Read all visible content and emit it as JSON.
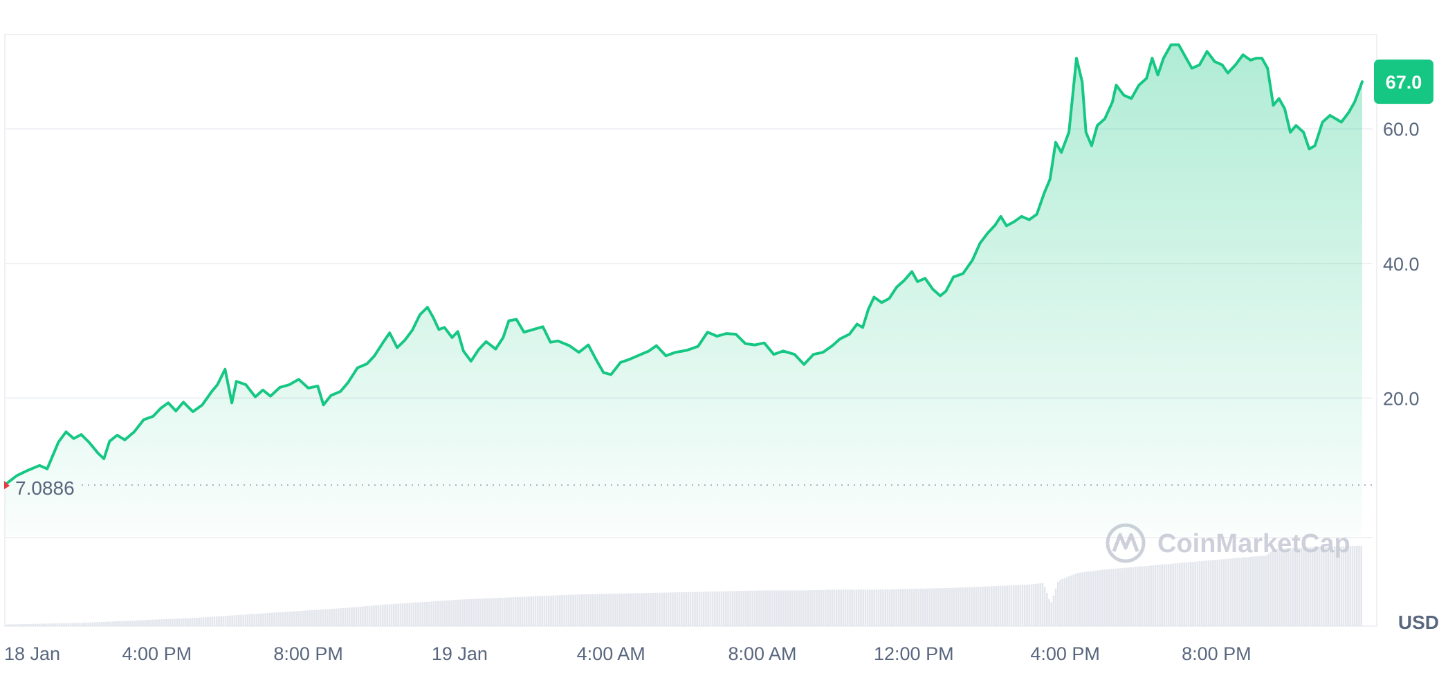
{
  "chart_data": {
    "type": "area",
    "currency": "USD",
    "baseline_label": "7.0886",
    "baseline": 7.0886,
    "current_label": "67.0",
    "current": 67.0,
    "ylim": [
      -0.5,
      74.0
    ],
    "y_ticks": [
      {
        "value": 20,
        "label": "20.0"
      },
      {
        "value": 40,
        "label": "40.0"
      },
      {
        "value": 60,
        "label": "60.0"
      }
    ],
    "x_ticks": [
      {
        "hour": 0,
        "label": "18 Jan"
      },
      {
        "hour": 4,
        "label": "4:00 PM"
      },
      {
        "hour": 8,
        "label": "8:00 PM"
      },
      {
        "hour": 12,
        "label": "19 Jan"
      },
      {
        "hour": 16,
        "label": "4:00 AM"
      },
      {
        "hour": 20,
        "label": "8:00 AM"
      },
      {
        "hour": 24,
        "label": "12:00 PM"
      },
      {
        "hour": 28,
        "label": "4:00 PM"
      },
      {
        "hour": 32,
        "label": "8:00 PM"
      }
    ],
    "series": [
      {
        "color": "#16c784",
        "points": [
          [
            0.0,
            7.2
          ],
          [
            0.3,
            8.5
          ],
          [
            0.6,
            9.3
          ],
          [
            0.9,
            10.0
          ],
          [
            1.1,
            9.5
          ],
          [
            1.25,
            11.5
          ],
          [
            1.4,
            13.5
          ],
          [
            1.6,
            15.0
          ],
          [
            1.8,
            14.0
          ],
          [
            2.0,
            14.6
          ],
          [
            2.2,
            13.5
          ],
          [
            2.45,
            11.8
          ],
          [
            2.6,
            11.0
          ],
          [
            2.75,
            13.6
          ],
          [
            2.95,
            14.5
          ],
          [
            3.15,
            13.8
          ],
          [
            3.4,
            15.0
          ],
          [
            3.65,
            16.8
          ],
          [
            3.9,
            17.3
          ],
          [
            4.1,
            18.5
          ],
          [
            4.3,
            19.3
          ],
          [
            4.5,
            18.1
          ],
          [
            4.7,
            19.4
          ],
          [
            4.95,
            18.0
          ],
          [
            5.2,
            19.0
          ],
          [
            5.45,
            21.0
          ],
          [
            5.6,
            22.0
          ],
          [
            5.8,
            24.3
          ],
          [
            5.98,
            19.3
          ],
          [
            6.1,
            22.5
          ],
          [
            6.35,
            22.0
          ],
          [
            6.6,
            20.2
          ],
          [
            6.8,
            21.2
          ],
          [
            7.0,
            20.3
          ],
          [
            7.25,
            21.6
          ],
          [
            7.5,
            22.0
          ],
          [
            7.75,
            22.8
          ],
          [
            8.0,
            21.5
          ],
          [
            8.25,
            21.8
          ],
          [
            8.4,
            19.0
          ],
          [
            8.6,
            20.4
          ],
          [
            8.85,
            21.0
          ],
          [
            9.05,
            22.3
          ],
          [
            9.3,
            24.5
          ],
          [
            9.55,
            25.1
          ],
          [
            9.75,
            26.3
          ],
          [
            9.98,
            28.3
          ],
          [
            10.15,
            29.7
          ],
          [
            10.35,
            27.5
          ],
          [
            10.55,
            28.6
          ],
          [
            10.75,
            30.1
          ],
          [
            10.95,
            32.4
          ],
          [
            11.15,
            33.5
          ],
          [
            11.3,
            32.0
          ],
          [
            11.45,
            30.2
          ],
          [
            11.6,
            30.5
          ],
          [
            11.8,
            29.0
          ],
          [
            11.95,
            29.9
          ],
          [
            12.1,
            27.0
          ],
          [
            12.3,
            25.5
          ],
          [
            12.5,
            27.2
          ],
          [
            12.7,
            28.4
          ],
          [
            12.95,
            27.3
          ],
          [
            13.15,
            29.0
          ],
          [
            13.3,
            31.5
          ],
          [
            13.5,
            31.7
          ],
          [
            13.7,
            29.8
          ],
          [
            13.95,
            30.2
          ],
          [
            14.2,
            30.6
          ],
          [
            14.4,
            28.3
          ],
          [
            14.6,
            28.5
          ],
          [
            14.9,
            27.8
          ],
          [
            15.15,
            26.8
          ],
          [
            15.4,
            27.9
          ],
          [
            15.6,
            25.8
          ],
          [
            15.8,
            23.8
          ],
          [
            16.0,
            23.5
          ],
          [
            16.25,
            25.3
          ],
          [
            16.5,
            25.8
          ],
          [
            16.75,
            26.4
          ],
          [
            17.0,
            27.0
          ],
          [
            17.2,
            27.8
          ],
          [
            17.45,
            26.3
          ],
          [
            17.7,
            26.8
          ],
          [
            18.0,
            27.1
          ],
          [
            18.3,
            27.7
          ],
          [
            18.55,
            29.8
          ],
          [
            18.8,
            29.2
          ],
          [
            19.05,
            29.6
          ],
          [
            19.3,
            29.5
          ],
          [
            19.55,
            28.1
          ],
          [
            19.8,
            27.9
          ],
          [
            20.05,
            28.2
          ],
          [
            20.3,
            26.5
          ],
          [
            20.55,
            27.0
          ],
          [
            20.85,
            26.5
          ],
          [
            21.1,
            25.0
          ],
          [
            21.35,
            26.5
          ],
          [
            21.6,
            26.8
          ],
          [
            21.85,
            27.8
          ],
          [
            22.05,
            28.8
          ],
          [
            22.3,
            29.5
          ],
          [
            22.5,
            31.0
          ],
          [
            22.65,
            30.5
          ],
          [
            22.8,
            33.2
          ],
          [
            22.95,
            35.0
          ],
          [
            23.15,
            34.2
          ],
          [
            23.35,
            34.8
          ],
          [
            23.55,
            36.5
          ],
          [
            23.75,
            37.5
          ],
          [
            23.95,
            38.8
          ],
          [
            24.1,
            37.3
          ],
          [
            24.3,
            37.8
          ],
          [
            24.5,
            36.2
          ],
          [
            24.7,
            35.2
          ],
          [
            24.85,
            35.9
          ],
          [
            25.05,
            38.0
          ],
          [
            25.3,
            38.5
          ],
          [
            25.55,
            40.5
          ],
          [
            25.75,
            43.0
          ],
          [
            25.95,
            44.5
          ],
          [
            26.15,
            45.7
          ],
          [
            26.3,
            47.0
          ],
          [
            26.45,
            45.6
          ],
          [
            26.65,
            46.2
          ],
          [
            26.85,
            47.0
          ],
          [
            27.05,
            46.5
          ],
          [
            27.25,
            47.3
          ],
          [
            27.45,
            50.5
          ],
          [
            27.6,
            52.5
          ],
          [
            27.75,
            58.0
          ],
          [
            27.9,
            56.5
          ],
          [
            28.1,
            59.5
          ],
          [
            28.3,
            70.5
          ],
          [
            28.45,
            67.0
          ],
          [
            28.55,
            59.5
          ],
          [
            28.7,
            57.5
          ],
          [
            28.85,
            60.5
          ],
          [
            29.05,
            61.5
          ],
          [
            29.25,
            64.0
          ],
          [
            29.35,
            66.5
          ],
          [
            29.55,
            65.0
          ],
          [
            29.75,
            64.5
          ],
          [
            29.95,
            66.5
          ],
          [
            30.15,
            67.5
          ],
          [
            30.3,
            70.5
          ],
          [
            30.45,
            68.0
          ],
          [
            30.6,
            70.5
          ],
          [
            30.8,
            72.5
          ],
          [
            31.0,
            72.5
          ],
          [
            31.2,
            70.5
          ],
          [
            31.35,
            69.0
          ],
          [
            31.55,
            69.5
          ],
          [
            31.75,
            71.5
          ],
          [
            31.95,
            70.0
          ],
          [
            32.15,
            69.5
          ],
          [
            32.3,
            68.3
          ],
          [
            32.5,
            69.5
          ],
          [
            32.7,
            71.0
          ],
          [
            32.9,
            70.2
          ],
          [
            33.05,
            70.5
          ],
          [
            33.2,
            70.5
          ],
          [
            33.35,
            69.0
          ],
          [
            33.5,
            63.5
          ],
          [
            33.65,
            64.5
          ],
          [
            33.8,
            63.0
          ],
          [
            33.95,
            59.5
          ],
          [
            34.1,
            60.5
          ],
          [
            34.3,
            59.5
          ],
          [
            34.45,
            57.0
          ],
          [
            34.6,
            57.5
          ],
          [
            34.8,
            61.0
          ],
          [
            35.0,
            62.0
          ],
          [
            35.15,
            61.5
          ],
          [
            35.3,
            61.0
          ],
          [
            35.5,
            62.5
          ],
          [
            35.65,
            64.0
          ],
          [
            35.85,
            67.0
          ]
        ]
      }
    ],
    "volume": [
      [
        0.0,
        0.02
      ],
      [
        1.0,
        0.03
      ],
      [
        2.0,
        0.04
      ],
      [
        3.0,
        0.06
      ],
      [
        4.0,
        0.08
      ],
      [
        5.0,
        0.1
      ],
      [
        6.0,
        0.13
      ],
      [
        7.0,
        0.16
      ],
      [
        8.0,
        0.19
      ],
      [
        9.0,
        0.22
      ],
      [
        10.0,
        0.26
      ],
      [
        11.0,
        0.29
      ],
      [
        12.0,
        0.32
      ],
      [
        13.0,
        0.34
      ],
      [
        14.0,
        0.36
      ],
      [
        15.0,
        0.38
      ],
      [
        16.0,
        0.39
      ],
      [
        17.0,
        0.4
      ],
      [
        18.0,
        0.41
      ],
      [
        19.0,
        0.42
      ],
      [
        20.0,
        0.43
      ],
      [
        21.0,
        0.43
      ],
      [
        22.0,
        0.44
      ],
      [
        23.0,
        0.44
      ],
      [
        24.0,
        0.45
      ],
      [
        25.0,
        0.46
      ],
      [
        26.0,
        0.48
      ],
      [
        27.0,
        0.5
      ],
      [
        27.4,
        0.52
      ],
      [
        27.6,
        0.27
      ],
      [
        27.8,
        0.55
      ],
      [
        28.3,
        0.64
      ],
      [
        29.0,
        0.68
      ],
      [
        30.0,
        0.72
      ],
      [
        31.0,
        0.76
      ],
      [
        32.0,
        0.8
      ],
      [
        33.0,
        0.84
      ],
      [
        33.3,
        0.85
      ],
      [
        33.5,
        0.93
      ],
      [
        34.5,
        0.95
      ],
      [
        35.85,
        0.97
      ]
    ]
  },
  "watermark": {
    "text": "CoinMarketCap"
  }
}
